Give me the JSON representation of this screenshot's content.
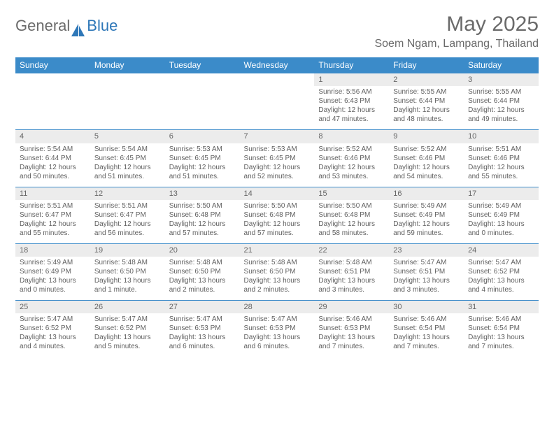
{
  "logo": {
    "textGeneral": "General",
    "textBlue": "Blue"
  },
  "title": "May 2025",
  "location": "Soem Ngam, Lampang, Thailand",
  "colors": {
    "headerBg": "#3b8bc9",
    "headerText": "#ffffff",
    "dayRowBg": "#ececec",
    "ruleColor": "#3b8bc9",
    "bodyText": "#5f5f5f"
  },
  "weekdays": [
    "Sunday",
    "Monday",
    "Tuesday",
    "Wednesday",
    "Thursday",
    "Friday",
    "Saturday"
  ],
  "weeks": [
    [
      null,
      null,
      null,
      null,
      {
        "n": "1",
        "sr": "Sunrise: 5:56 AM",
        "ss": "Sunset: 6:43 PM",
        "d1": "Daylight: 12 hours",
        "d2": "and 47 minutes."
      },
      {
        "n": "2",
        "sr": "Sunrise: 5:55 AM",
        "ss": "Sunset: 6:44 PM",
        "d1": "Daylight: 12 hours",
        "d2": "and 48 minutes."
      },
      {
        "n": "3",
        "sr": "Sunrise: 5:55 AM",
        "ss": "Sunset: 6:44 PM",
        "d1": "Daylight: 12 hours",
        "d2": "and 49 minutes."
      }
    ],
    [
      {
        "n": "4",
        "sr": "Sunrise: 5:54 AM",
        "ss": "Sunset: 6:44 PM",
        "d1": "Daylight: 12 hours",
        "d2": "and 50 minutes."
      },
      {
        "n": "5",
        "sr": "Sunrise: 5:54 AM",
        "ss": "Sunset: 6:45 PM",
        "d1": "Daylight: 12 hours",
        "d2": "and 51 minutes."
      },
      {
        "n": "6",
        "sr": "Sunrise: 5:53 AM",
        "ss": "Sunset: 6:45 PM",
        "d1": "Daylight: 12 hours",
        "d2": "and 51 minutes."
      },
      {
        "n": "7",
        "sr": "Sunrise: 5:53 AM",
        "ss": "Sunset: 6:45 PM",
        "d1": "Daylight: 12 hours",
        "d2": "and 52 minutes."
      },
      {
        "n": "8",
        "sr": "Sunrise: 5:52 AM",
        "ss": "Sunset: 6:46 PM",
        "d1": "Daylight: 12 hours",
        "d2": "and 53 minutes."
      },
      {
        "n": "9",
        "sr": "Sunrise: 5:52 AM",
        "ss": "Sunset: 6:46 PM",
        "d1": "Daylight: 12 hours",
        "d2": "and 54 minutes."
      },
      {
        "n": "10",
        "sr": "Sunrise: 5:51 AM",
        "ss": "Sunset: 6:46 PM",
        "d1": "Daylight: 12 hours",
        "d2": "and 55 minutes."
      }
    ],
    [
      {
        "n": "11",
        "sr": "Sunrise: 5:51 AM",
        "ss": "Sunset: 6:47 PM",
        "d1": "Daylight: 12 hours",
        "d2": "and 55 minutes."
      },
      {
        "n": "12",
        "sr": "Sunrise: 5:51 AM",
        "ss": "Sunset: 6:47 PM",
        "d1": "Daylight: 12 hours",
        "d2": "and 56 minutes."
      },
      {
        "n": "13",
        "sr": "Sunrise: 5:50 AM",
        "ss": "Sunset: 6:48 PM",
        "d1": "Daylight: 12 hours",
        "d2": "and 57 minutes."
      },
      {
        "n": "14",
        "sr": "Sunrise: 5:50 AM",
        "ss": "Sunset: 6:48 PM",
        "d1": "Daylight: 12 hours",
        "d2": "and 57 minutes."
      },
      {
        "n": "15",
        "sr": "Sunrise: 5:50 AM",
        "ss": "Sunset: 6:48 PM",
        "d1": "Daylight: 12 hours",
        "d2": "and 58 minutes."
      },
      {
        "n": "16",
        "sr": "Sunrise: 5:49 AM",
        "ss": "Sunset: 6:49 PM",
        "d1": "Daylight: 12 hours",
        "d2": "and 59 minutes."
      },
      {
        "n": "17",
        "sr": "Sunrise: 5:49 AM",
        "ss": "Sunset: 6:49 PM",
        "d1": "Daylight: 13 hours",
        "d2": "and 0 minutes."
      }
    ],
    [
      {
        "n": "18",
        "sr": "Sunrise: 5:49 AM",
        "ss": "Sunset: 6:49 PM",
        "d1": "Daylight: 13 hours",
        "d2": "and 0 minutes."
      },
      {
        "n": "19",
        "sr": "Sunrise: 5:48 AM",
        "ss": "Sunset: 6:50 PM",
        "d1": "Daylight: 13 hours",
        "d2": "and 1 minute."
      },
      {
        "n": "20",
        "sr": "Sunrise: 5:48 AM",
        "ss": "Sunset: 6:50 PM",
        "d1": "Daylight: 13 hours",
        "d2": "and 2 minutes."
      },
      {
        "n": "21",
        "sr": "Sunrise: 5:48 AM",
        "ss": "Sunset: 6:50 PM",
        "d1": "Daylight: 13 hours",
        "d2": "and 2 minutes."
      },
      {
        "n": "22",
        "sr": "Sunrise: 5:48 AM",
        "ss": "Sunset: 6:51 PM",
        "d1": "Daylight: 13 hours",
        "d2": "and 3 minutes."
      },
      {
        "n": "23",
        "sr": "Sunrise: 5:47 AM",
        "ss": "Sunset: 6:51 PM",
        "d1": "Daylight: 13 hours",
        "d2": "and 3 minutes."
      },
      {
        "n": "24",
        "sr": "Sunrise: 5:47 AM",
        "ss": "Sunset: 6:52 PM",
        "d1": "Daylight: 13 hours",
        "d2": "and 4 minutes."
      }
    ],
    [
      {
        "n": "25",
        "sr": "Sunrise: 5:47 AM",
        "ss": "Sunset: 6:52 PM",
        "d1": "Daylight: 13 hours",
        "d2": "and 4 minutes."
      },
      {
        "n": "26",
        "sr": "Sunrise: 5:47 AM",
        "ss": "Sunset: 6:52 PM",
        "d1": "Daylight: 13 hours",
        "d2": "and 5 minutes."
      },
      {
        "n": "27",
        "sr": "Sunrise: 5:47 AM",
        "ss": "Sunset: 6:53 PM",
        "d1": "Daylight: 13 hours",
        "d2": "and 6 minutes."
      },
      {
        "n": "28",
        "sr": "Sunrise: 5:47 AM",
        "ss": "Sunset: 6:53 PM",
        "d1": "Daylight: 13 hours",
        "d2": "and 6 minutes."
      },
      {
        "n": "29",
        "sr": "Sunrise: 5:46 AM",
        "ss": "Sunset: 6:53 PM",
        "d1": "Daylight: 13 hours",
        "d2": "and 7 minutes."
      },
      {
        "n": "30",
        "sr": "Sunrise: 5:46 AM",
        "ss": "Sunset: 6:54 PM",
        "d1": "Daylight: 13 hours",
        "d2": "and 7 minutes."
      },
      {
        "n": "31",
        "sr": "Sunrise: 5:46 AM",
        "ss": "Sunset: 6:54 PM",
        "d1": "Daylight: 13 hours",
        "d2": "and 7 minutes."
      }
    ]
  ]
}
